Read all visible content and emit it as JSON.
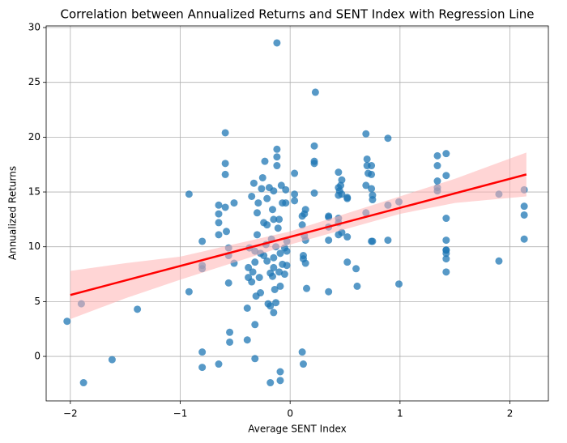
{
  "chart_data": {
    "type": "scatter",
    "title": "Correlation between Annualized Returns and SENT Index with Regression Line",
    "xlabel": "Average SENT Index",
    "ylabel": "Annualized Returns",
    "color": "#1f77b4",
    "grid": true,
    "xlim": [
      -2.22,
      2.35
    ],
    "ylim": [
      -4.06,
      30.15
    ],
    "xticks": [
      {
        "value": -2,
        "label": "−2"
      },
      {
        "value": -1,
        "label": "−1"
      },
      0,
      1,
      2
    ],
    "yticks": [
      0,
      5,
      10,
      15,
      20,
      25,
      30
    ],
    "x": [
      -2.03,
      -1.9,
      -1.88,
      -1.62,
      -1.39,
      -0.92,
      -0.92,
      -0.8,
      -0.8,
      -0.8,
      -0.8,
      -0.8,
      -0.65,
      -0.65,
      -0.65,
      -0.65,
      -0.65,
      -0.59,
      -0.59,
      -0.59,
      -0.59,
      -0.58,
      -0.56,
      -0.56,
      -0.56,
      -0.55,
      -0.55,
      -0.51,
      -0.51,
      -0.39,
      -0.39,
      -0.38,
      -0.38,
      -0.37,
      -0.35,
      -0.35,
      -0.34,
      -0.33,
      -0.32,
      -0.32,
      -0.32,
      -0.32,
      -0.31,
      -0.3,
      -0.3,
      -0.29,
      -0.28,
      -0.27,
      -0.27,
      -0.26,
      -0.25,
      -0.24,
      -0.24,
      -0.23,
      -0.22,
      -0.21,
      -0.21,
      -0.21,
      -0.2,
      -0.19,
      -0.18,
      -0.18,
      -0.18,
      -0.17,
      -0.16,
      -0.16,
      -0.15,
      -0.15,
      -0.15,
      -0.15,
      -0.15,
      -0.14,
      -0.13,
      -0.13,
      -0.12,
      -0.12,
      -0.12,
      -0.12,
      -0.11,
      -0.1,
      -0.1,
      -0.09,
      -0.09,
      -0.09,
      -0.09,
      -0.08,
      -0.07,
      -0.07,
      -0.05,
      -0.05,
      -0.04,
      -0.04,
      -0.03,
      -0.03,
      -0.03,
      0.04,
      0.04,
      0.04,
      0.11,
      0.11,
      0.11,
      0.12,
      0.12,
      0.12,
      0.13,
      0.13,
      0.14,
      0.14,
      0.14,
      0.15,
      0.22,
      0.22,
      0.22,
      0.22,
      0.23,
      0.35,
      0.35,
      0.35,
      0.35,
      0.35,
      0.44,
      0.44,
      0.44,
      0.44,
      0.44,
      0.44,
      0.45,
      0.46,
      0.47,
      0.47,
      0.47,
      0.52,
      0.52,
      0.52,
      0.52,
      0.6,
      0.61,
      0.69,
      0.69,
      0.69,
      0.7,
      0.7,
      0.71,
      0.74,
      0.74,
      0.74,
      0.74,
      0.75,
      0.75,
      0.75,
      0.89,
      0.89,
      0.89,
      0.99,
      0.99,
      1.34,
      1.34,
      1.34,
      1.34,
      1.34,
      1.42,
      1.42,
      1.42,
      1.42,
      1.42,
      1.42,
      1.42,
      1.42,
      1.42,
      1.9,
      1.9,
      2.13,
      2.13,
      2.13,
      2.13
    ],
    "values": [
      3.2,
      4.8,
      -2.4,
      -0.3,
      4.3,
      14.8,
      5.9,
      10.5,
      8.3,
      8.0,
      0.4,
      -1.0,
      13.8,
      13.0,
      12.2,
      11.1,
      -0.7,
      20.4,
      17.6,
      16.6,
      13.6,
      11.4,
      9.9,
      9.2,
      6.7,
      2.2,
      1.3,
      14.0,
      8.5,
      4.4,
      1.5,
      8.1,
      7.2,
      9.9,
      14.6,
      6.8,
      7.7,
      15.8,
      9.6,
      8.6,
      2.9,
      -0.2,
      5.5,
      11.1,
      13.1,
      14.0,
      7.2,
      5.8,
      9.4,
      15.3,
      16.3,
      12.2,
      9.2,
      17.8,
      10.2,
      12.0,
      14.4,
      8.7,
      4.8,
      15.4,
      7.6,
      4.6,
      -2.4,
      10.7,
      13.4,
      7.3,
      12.5,
      8.1,
      4.0,
      15.1,
      9.0,
      6.1,
      4.9,
      10.0,
      28.6,
      18.9,
      18.2,
      17.4,
      11.7,
      12.5,
      7.7,
      6.4,
      9.4,
      -1.4,
      -2.2,
      15.6,
      8.4,
      14.0,
      9.9,
      7.5,
      15.2,
      14.0,
      9.6,
      8.3,
      10.5,
      16.7,
      14.8,
      14.2,
      12.8,
      12.0,
      0.4,
      -0.7,
      9.2,
      8.9,
      13.0,
      11.0,
      13.4,
      10.6,
      8.5,
      6.2,
      17.8,
      17.6,
      19.2,
      14.9,
      24.1,
      12.8,
      12.7,
      11.8,
      10.6,
      5.9,
      16.8,
      15.4,
      14.7,
      12.6,
      12.2,
      11.1,
      15.1,
      15.6,
      16.1,
      14.8,
      11.3,
      14.5,
      14.4,
      10.9,
      8.6,
      8.0,
      6.4,
      15.6,
      13.1,
      20.3,
      18.0,
      17.4,
      16.7,
      10.5,
      17.4,
      16.6,
      15.3,
      14.7,
      14.3,
      10.5,
      13.8,
      10.6,
      19.9,
      14.1,
      6.6,
      18.3,
      17.4,
      16.0,
      15.4,
      15.1,
      12.6,
      9.7,
      9.4,
      8.9,
      7.7,
      18.5,
      16.5,
      10.6,
      9.7,
      14.8,
      8.7,
      15.2,
      13.7,
      12.9,
      10.7
    ],
    "regression": {
      "x": [
        -2,
        2.15
      ],
      "y": [
        5.6,
        16.6
      ],
      "color": "#ff0000"
    },
    "band": {
      "x": [
        -2,
        -1.5,
        -1,
        0,
        1,
        1.5,
        2.15
      ],
      "lower": [
        3.4,
        5.3,
        7.0,
        10.2,
        13.0,
        14.0,
        14.6
      ],
      "upper": [
        7.8,
        8.5,
        9.1,
        11.4,
        14.6,
        16.2,
        18.6
      ],
      "color": "#ffb3b3"
    }
  }
}
